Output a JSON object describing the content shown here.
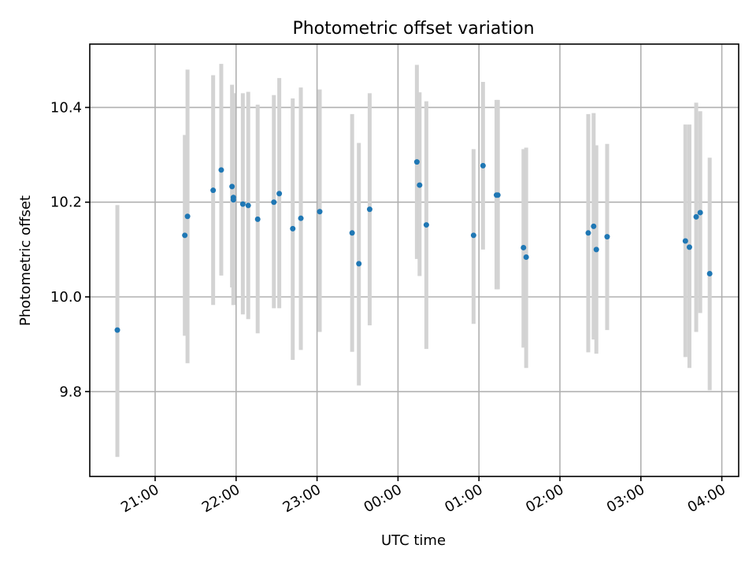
{
  "chart_data": {
    "type": "scatter",
    "title": "Photometric offset variation",
    "xlabel": "UTC time",
    "ylabel": "Photometric offset",
    "x_ticks": [
      "21:00",
      "22:00",
      "23:00",
      "00:00",
      "01:00",
      "02:00",
      "03:00",
      "04:00"
    ],
    "y_ticks": [
      "9.8",
      "10.0",
      "10.2",
      "10.4"
    ],
    "y_tick_values": [
      9.8,
      10.0,
      10.2,
      10.4
    ],
    "grid": true,
    "error_bar_color": "#d3d3d3",
    "point_color": "#1f77b4",
    "series": [
      {
        "x": [
          "20:32",
          "21:22",
          "21:24",
          "21:43",
          "21:49",
          "21:57",
          "21:58",
          "21:58",
          "22:05",
          "22:09",
          "22:16",
          "22:28",
          "22:32",
          "22:42",
          "22:48",
          "23:02",
          "23:26",
          "23:31",
          "23:39",
          "00:14",
          "00:16",
          "00:21",
          "00:56",
          "01:03",
          "01:13",
          "01:14",
          "01:33",
          "01:35",
          "02:21",
          "02:25",
          "02:27",
          "02:35",
          "03:33",
          "03:36",
          "03:41",
          "03:44",
          "03:51"
        ],
        "y": [
          9.93,
          10.13,
          10.17,
          10.225,
          10.268,
          10.233,
          10.21,
          10.205,
          10.196,
          10.193,
          10.164,
          10.2,
          10.218,
          10.144,
          10.166,
          10.18,
          10.135,
          10.07,
          10.185,
          10.285,
          10.236,
          10.152,
          10.13,
          10.277,
          10.215,
          10.215,
          10.104,
          10.084,
          10.135,
          10.149,
          10.1,
          10.127,
          10.118,
          10.105,
          10.169,
          10.178,
          10.049
        ],
        "yerr_low": [
          9.662,
          9.918,
          9.86,
          9.983,
          10.045,
          10.02,
          9.983,
          9.983,
          9.963,
          9.953,
          9.923,
          9.976,
          9.976,
          9.867,
          9.888,
          9.926,
          9.884,
          9.813,
          9.94,
          10.08,
          10.044,
          9.89,
          9.943,
          10.1,
          10.016,
          10.016,
          9.893,
          9.85,
          9.883,
          9.91,
          9.88,
          9.93,
          9.873,
          9.85,
          9.926,
          9.966,
          9.803
        ],
        "yerr_high": [
          10.194,
          10.342,
          10.48,
          10.468,
          10.492,
          10.448,
          10.43,
          10.43,
          10.43,
          10.433,
          10.406,
          10.426,
          10.462,
          10.419,
          10.442,
          10.438,
          10.386,
          10.325,
          10.43,
          10.49,
          10.432,
          10.413,
          10.312,
          10.454,
          10.416,
          10.416,
          10.312,
          10.315,
          10.386,
          10.388,
          10.32,
          10.323,
          10.364,
          10.364,
          10.41,
          10.392,
          10.294
        ]
      }
    ]
  }
}
